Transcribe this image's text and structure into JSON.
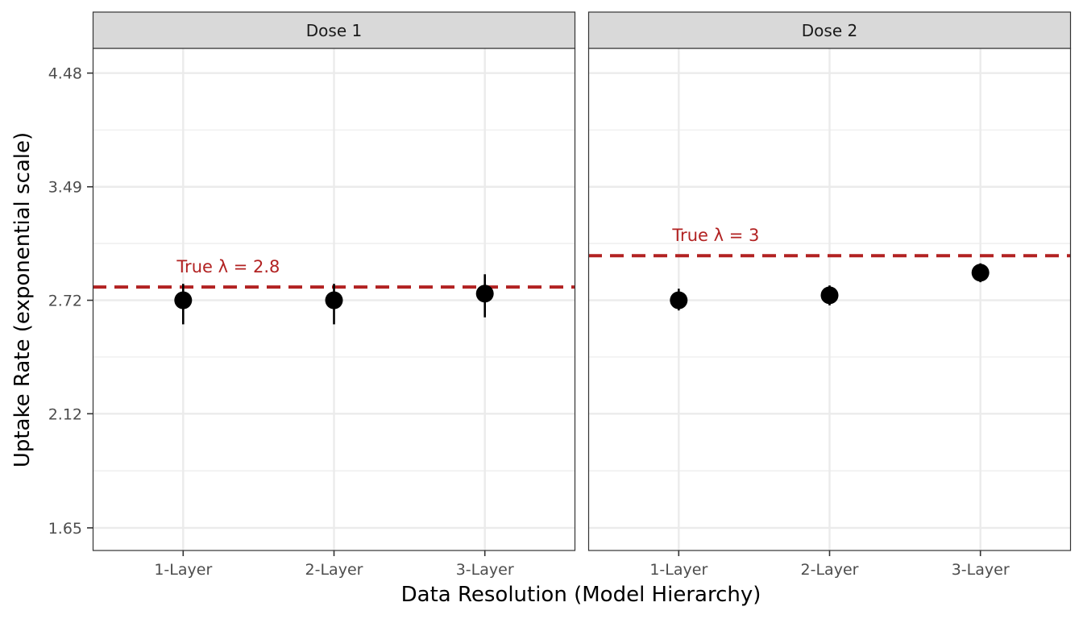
{
  "chart_data": {
    "type": "scatter",
    "subtype": "point-range, faceted",
    "xlabel": "Data Resolution (Model Hierarchy)",
    "ylabel": "Uptake Rate (exponential scale)",
    "categories": [
      "1-Layer",
      "2-Layer",
      "3-Layer"
    ],
    "y_scale": "log",
    "yticks": [
      1.65,
      2.12,
      2.72,
      3.49,
      4.48
    ],
    "ytick_labels": [
      "1.65",
      "2.12",
      "2.72",
      "3.49",
      "4.48"
    ],
    "ylim": [
      1.57,
      4.73
    ],
    "grid": true,
    "colors": {
      "points": "#000000",
      "reference": "#b22222",
      "strip": "#d9d9d9",
      "grid": "#ebebeb"
    },
    "panels": [
      {
        "strip_label": "Dose 1",
        "reference": {
          "value": 2.8,
          "label": "True λ = 2.8"
        },
        "points": [
          {
            "category": "1-Layer",
            "estimate": 2.72,
            "lower": 2.58,
            "upper": 2.82
          },
          {
            "category": "2-Layer",
            "estimate": 2.72,
            "lower": 2.58,
            "upper": 2.82
          },
          {
            "category": "3-Layer",
            "estimate": 2.76,
            "lower": 2.62,
            "upper": 2.88
          }
        ]
      },
      {
        "strip_label": "Dose 2",
        "reference": {
          "value": 3.0,
          "label": "True λ = 3"
        },
        "points": [
          {
            "category": "1-Layer",
            "estimate": 2.72,
            "lower": 2.66,
            "upper": 2.79
          },
          {
            "category": "2-Layer",
            "estimate": 2.75,
            "lower": 2.69,
            "upper": 2.81
          },
          {
            "category": "3-Layer",
            "estimate": 2.89,
            "lower": 2.83,
            "upper": 2.95
          }
        ]
      }
    ]
  }
}
